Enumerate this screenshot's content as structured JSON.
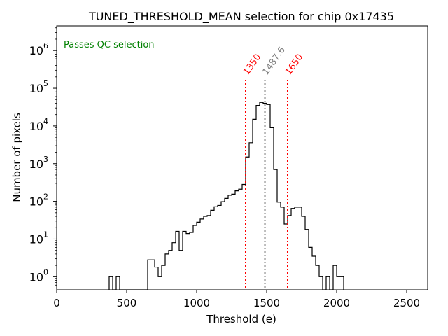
{
  "chart_data": {
    "type": "step-histogram",
    "title": "TUNED_THRESHOLD_MEAN selection for chip 0x17435",
    "xlabel": "Threshold (e)",
    "ylabel": "Number of pixels",
    "yscale": "log",
    "xlim": [
      0,
      2650
    ],
    "ylim": [
      0.45,
      4500000
    ],
    "xticks": [
      0,
      500,
      1000,
      1500,
      2000,
      2500
    ],
    "yticks": [
      {
        "value": 1,
        "label": "10",
        "exp": "0"
      },
      {
        "value": 10,
        "label": "10",
        "exp": "1"
      },
      {
        "value": 100,
        "label": "10",
        "exp": "2"
      },
      {
        "value": 1000,
        "label": "10",
        "exp": "3"
      },
      {
        "value": 10000,
        "label": "10",
        "exp": "4"
      },
      {
        "value": 100000,
        "label": "10",
        "exp": "5"
      },
      {
        "value": 1000000,
        "label": "10",
        "exp": "6"
      }
    ],
    "status_text": "Passes QC selection",
    "bin_width": 25,
    "bins": [
      [
        375,
        1
      ],
      [
        400,
        0
      ],
      [
        425,
        1
      ],
      [
        450,
        0
      ],
      [
        475,
        0
      ],
      [
        500,
        0
      ],
      [
        525,
        0
      ],
      [
        550,
        0
      ],
      [
        575,
        0
      ],
      [
        600,
        0
      ],
      [
        625,
        0
      ],
      [
        650,
        2.8
      ],
      [
        675,
        2.8
      ],
      [
        700,
        1.8
      ],
      [
        725,
        1
      ],
      [
        750,
        2
      ],
      [
        775,
        4
      ],
      [
        800,
        5
      ],
      [
        825,
        8
      ],
      [
        850,
        16
      ],
      [
        875,
        5
      ],
      [
        900,
        16
      ],
      [
        925,
        14
      ],
      [
        950,
        15
      ],
      [
        975,
        23
      ],
      [
        1000,
        28
      ],
      [
        1025,
        34
      ],
      [
        1050,
        40
      ],
      [
        1075,
        42
      ],
      [
        1100,
        58
      ],
      [
        1125,
        72
      ],
      [
        1150,
        78
      ],
      [
        1175,
        98
      ],
      [
        1200,
        120
      ],
      [
        1225,
        145
      ],
      [
        1250,
        155
      ],
      [
        1275,
        190
      ],
      [
        1300,
        210
      ],
      [
        1325,
        280
      ],
      [
        1350,
        1500
      ],
      [
        1375,
        3600
      ],
      [
        1400,
        15000
      ],
      [
        1425,
        35000
      ],
      [
        1450,
        42000
      ],
      [
        1475,
        40000
      ],
      [
        1500,
        37000
      ],
      [
        1525,
        9000
      ],
      [
        1550,
        700
      ],
      [
        1575,
        95
      ],
      [
        1600,
        70
      ],
      [
        1625,
        25
      ],
      [
        1650,
        42
      ],
      [
        1675,
        65
      ],
      [
        1700,
        70
      ],
      [
        1725,
        70
      ],
      [
        1750,
        40
      ],
      [
        1775,
        18
      ],
      [
        1800,
        6
      ],
      [
        1825,
        3.5
      ],
      [
        1850,
        2
      ],
      [
        1875,
        1
      ],
      [
        1900,
        0
      ],
      [
        1925,
        1
      ],
      [
        1950,
        0
      ],
      [
        1975,
        2
      ],
      [
        2000,
        1
      ],
      [
        2025,
        1
      ]
    ],
    "lines": [
      {
        "x": 1350,
        "label": "1350",
        "color": "#ff0000",
        "style": "dotted"
      },
      {
        "x": 1487.6,
        "label": "1487.6",
        "color": "#808080",
        "style": "dotted"
      },
      {
        "x": 1650,
        "label": "1650",
        "color": "#ff0000",
        "style": "dotted"
      }
    ],
    "colors": {
      "hist": "#000000",
      "status": "#008000"
    },
    "grid": false
  }
}
